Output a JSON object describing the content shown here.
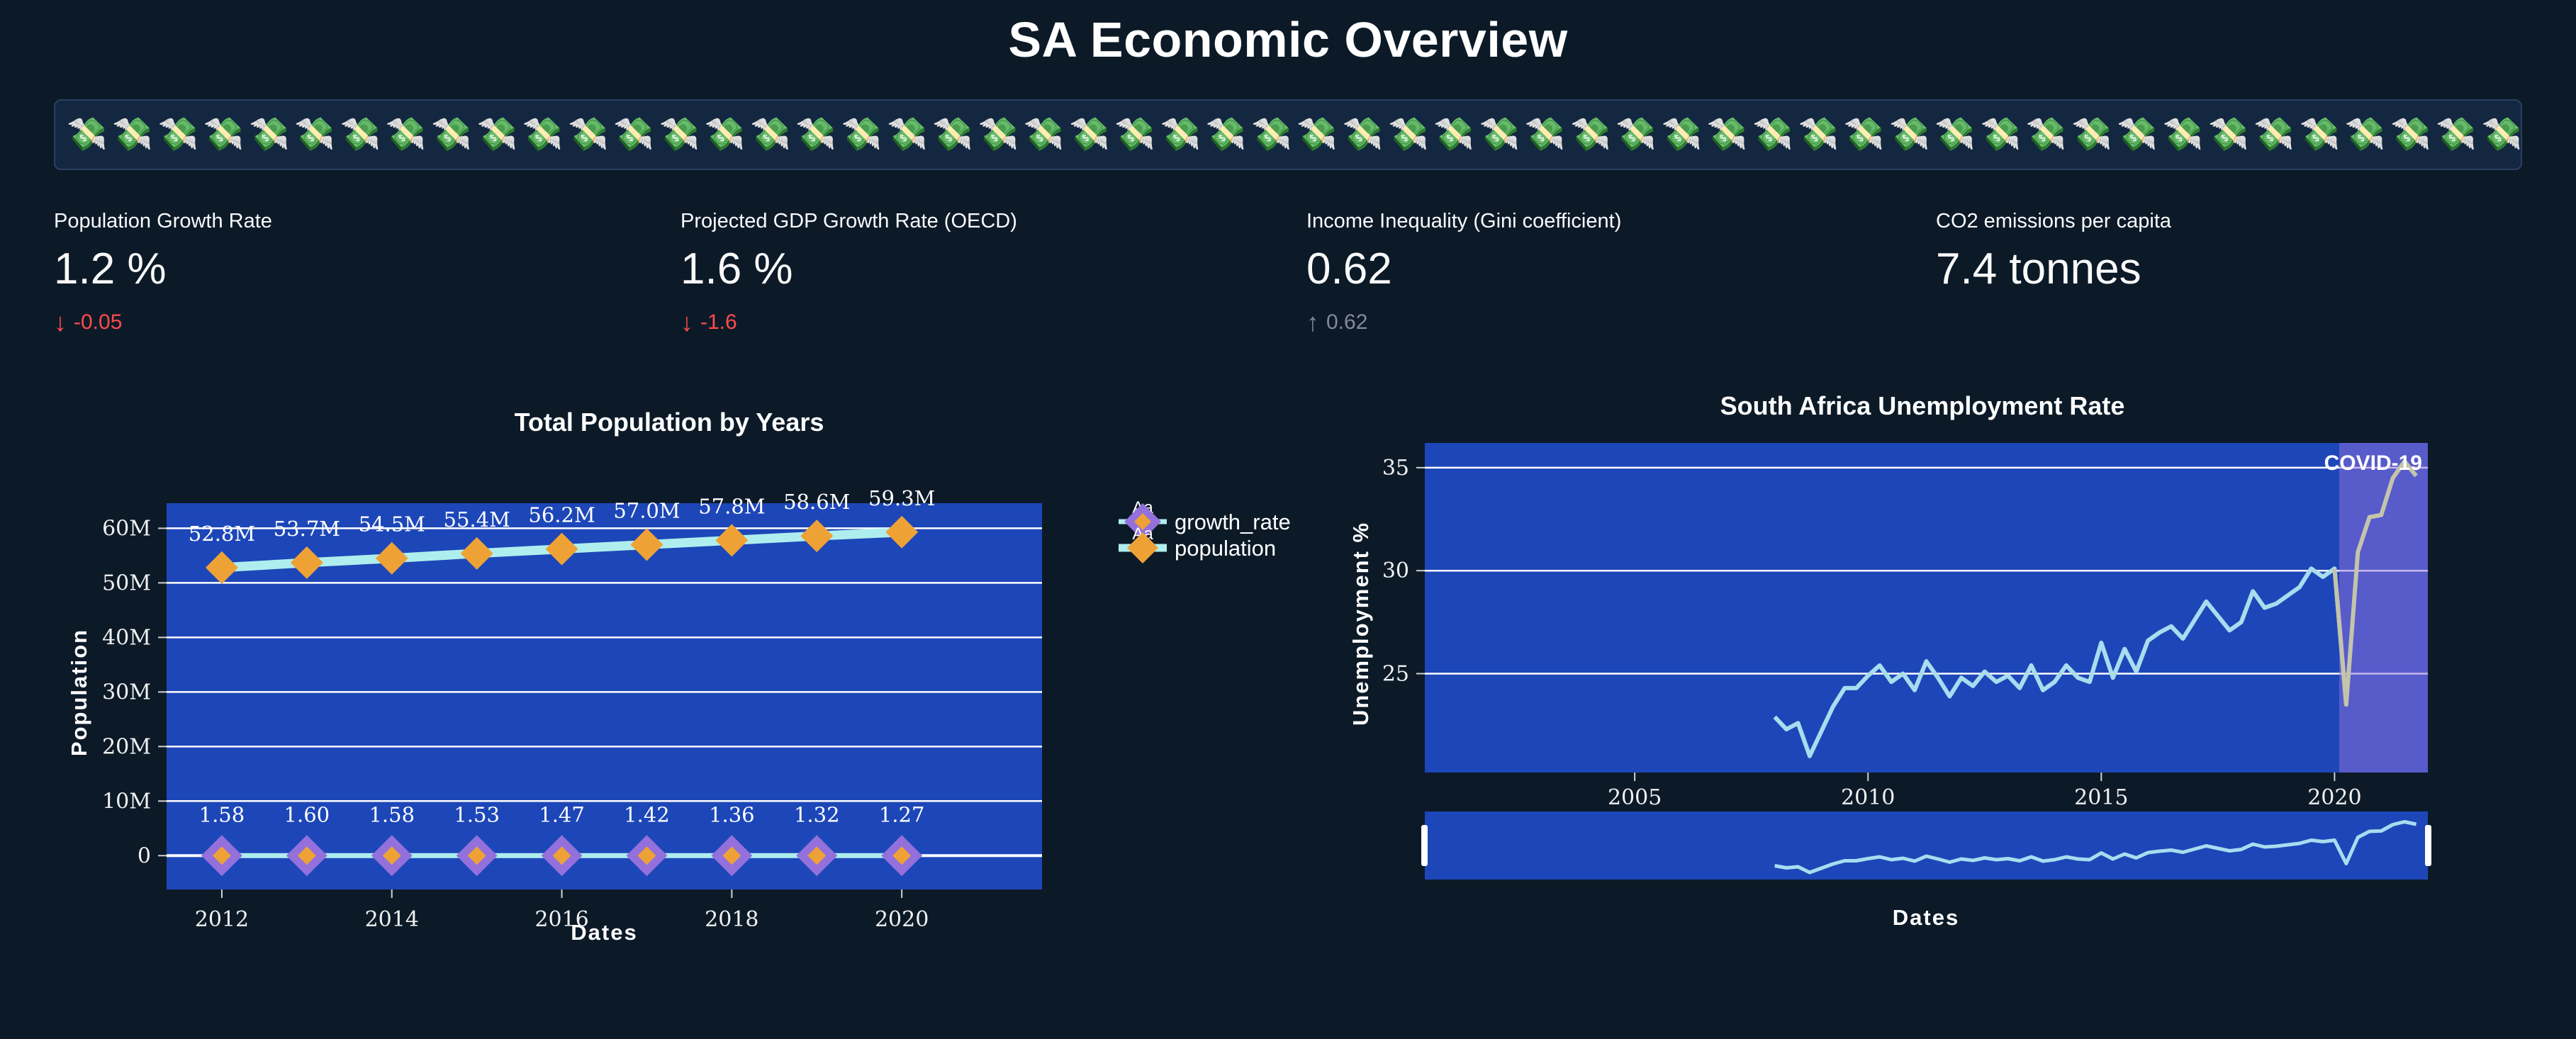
{
  "page": {
    "title": "SA Economic Overview"
  },
  "banner": {
    "emoji": "💸",
    "group1": 64,
    "group2": 20
  },
  "colors": {
    "page_bg": "#0c1a28",
    "banner_bg": "#142740",
    "banner_border": "#2a3f63",
    "plot_bg": "#1d47b8",
    "grid": "#ffffff",
    "pop_line": "#AFEEEE",
    "marker_orange": "#EEA236",
    "marker_purple": "#9370DB",
    "unemp_line": "#A9DCEF",
    "covid_line": "#C4C4AB",
    "covid_band": "#9370DB",
    "delta_red": "#FF4B4B",
    "delta_gray": "#83889B"
  },
  "metrics": [
    {
      "label": "Population Growth Rate",
      "value": "1.2 %",
      "arrow": "↓",
      "delta": "-0.05",
      "delta_color": "#FF4B4B"
    },
    {
      "label": "Projected GDP Growth Rate (OECD)",
      "value": "1.6 %",
      "arrow": "↓",
      "delta": "-1.6",
      "delta_color": "#FF4B4B"
    },
    {
      "label": "Income Inequality (Gini coefficient)",
      "value": "0.62",
      "arrow": "↑",
      "delta": "0.62",
      "delta_color": "#83889B"
    },
    {
      "label": "CO2 emissions per capita",
      "value": "7.4 tonnes",
      "arrow": "",
      "delta": "",
      "delta_color": "#83889B"
    }
  ],
  "chart_data": [
    {
      "id": "total-population",
      "type": "line",
      "title": "Total Population by Years",
      "xlabel": "Dates",
      "ylabel": "Population",
      "x": [
        2012,
        2013,
        2014,
        2015,
        2016,
        2017,
        2018,
        2019,
        2020
      ],
      "series": [
        {
          "name": "growth_rate",
          "values": [
            1.58,
            1.6,
            1.58,
            1.53,
            1.47,
            1.42,
            1.36,
            1.32,
            1.27
          ],
          "labels": [
            "1.58",
            "1.60",
            "1.58",
            "1.53",
            "1.47",
            "1.42",
            "1.36",
            "1.32",
            "1.27"
          ]
        },
        {
          "name": "population",
          "values": [
            52800000,
            53700000,
            54500000,
            55400000,
            56200000,
            57000000,
            57800000,
            58600000,
            59300000
          ],
          "labels": [
            "52.8M",
            "53.7M",
            "54.5M",
            "55.4M",
            "56.2M",
            "57.0M",
            "57.8M",
            "58.6M",
            "59.3M"
          ]
        }
      ],
      "legend": [
        {
          "aa": "Aa",
          "label": "growth_rate"
        },
        {
          "aa": "Aa",
          "label": "population"
        }
      ],
      "xticks": [
        2012,
        2014,
        2016,
        2018,
        2020
      ],
      "yticks": [
        {
          "v": 0,
          "label": "0"
        },
        {
          "v": 10000000,
          "label": "10M"
        },
        {
          "v": 20000000,
          "label": "20M"
        },
        {
          "v": 30000000,
          "label": "30M"
        },
        {
          "v": 40000000,
          "label": "40M"
        },
        {
          "v": 50000000,
          "label": "50M"
        },
        {
          "v": 60000000,
          "label": "60M"
        }
      ],
      "xlim": [
        2011.35,
        2021.65
      ],
      "ylim": [
        -6200000,
        64600000
      ],
      "grid": true,
      "legend_position": "right"
    },
    {
      "id": "unemployment-rate",
      "type": "line",
      "title": "South Africa Unemployment Rate",
      "xlabel": "Dates",
      "ylabel": "Unemployment %",
      "x": [
        2008,
        2008.25,
        2008.5,
        2008.75,
        2009,
        2009.25,
        2009.5,
        2009.75,
        2010,
        2010.25,
        2010.5,
        2010.75,
        2011,
        2011.25,
        2011.5,
        2011.75,
        2012,
        2012.25,
        2012.5,
        2012.75,
        2013,
        2013.25,
        2013.5,
        2013.75,
        2014,
        2014.25,
        2014.5,
        2014.75,
        2015,
        2015.25,
        2015.5,
        2015.75,
        2016,
        2016.25,
        2016.5,
        2016.75,
        2017,
        2017.25,
        2017.5,
        2017.75,
        2018,
        2018.25,
        2018.5,
        2018.75,
        2019,
        2019.25,
        2019.5,
        2019.75,
        2020,
        2020.25,
        2020.5,
        2020.75,
        2021,
        2021.25,
        2021.5,
        2021.75
      ],
      "values": [
        22.9,
        22.3,
        22.6,
        21.0,
        22.2,
        23.4,
        24.3,
        24.3,
        24.9,
        25.4,
        24.6,
        25.0,
        24.2,
        25.6,
        24.8,
        23.9,
        24.8,
        24.4,
        25.1,
        24.6,
        24.9,
        24.3,
        25.4,
        24.2,
        24.6,
        25.4,
        24.8,
        24.6,
        26.5,
        24.8,
        26.2,
        25.1,
        26.6,
        27.0,
        27.3,
        26.7,
        27.6,
        28.5,
        27.8,
        27.1,
        27.5,
        29.0,
        28.2,
        28.4,
        28.8,
        29.2,
        30.1,
        29.7,
        30.1,
        23.5,
        30.9,
        32.6,
        32.7,
        34.5,
        35.3,
        34.6
      ],
      "xticks": [
        2005,
        2010,
        2015,
        2020
      ],
      "yticks": [
        25,
        30,
        35
      ],
      "xlim": [
        2000.5,
        2022
      ],
      "ylim": [
        20.2,
        36.2
      ],
      "annotation": {
        "label": "COVID-19",
        "band_start": 2020.1,
        "band_end": 2022
      },
      "rangeslider": true,
      "grid": true
    }
  ]
}
